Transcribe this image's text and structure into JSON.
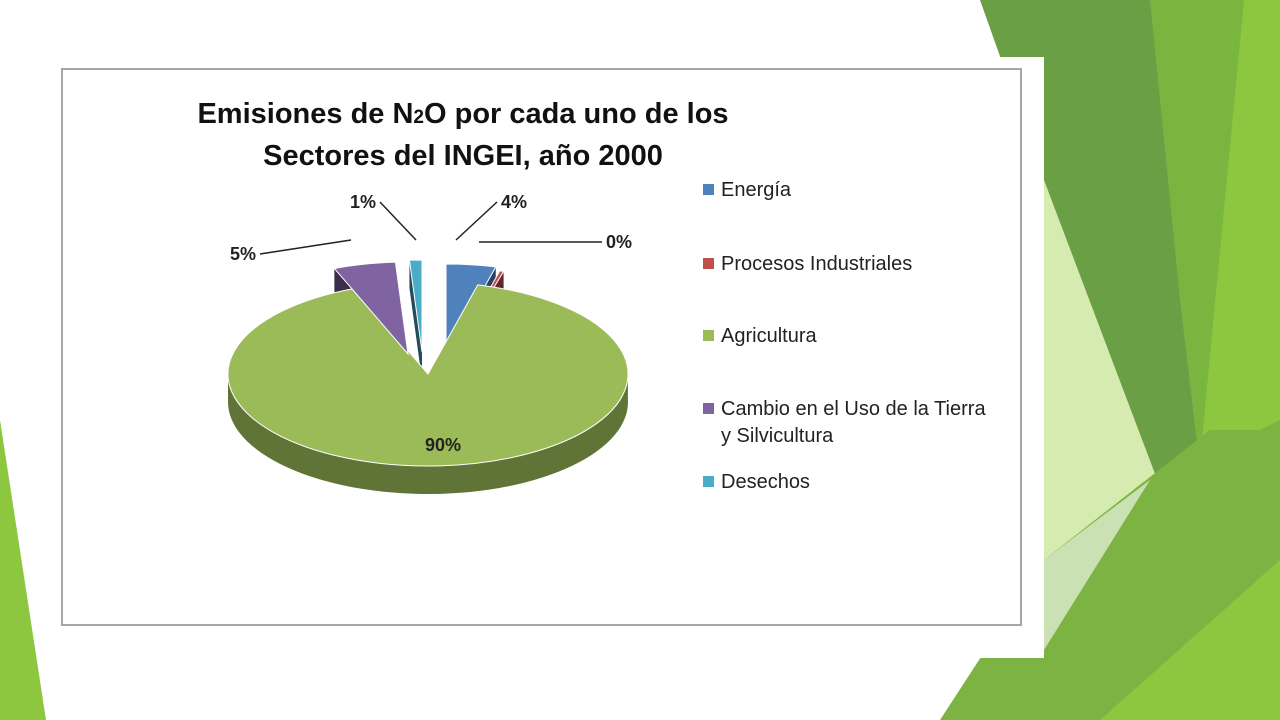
{
  "colors": {
    "green_dark": "#5f9b37",
    "green_mid": "#79b53f",
    "green_light": "#8dc63f",
    "green_pale": "#d6ebb0"
  },
  "chart_data": {
    "type": "pie",
    "style": "3d-exploded",
    "title_line1": "Emisiones de N",
    "title_sub": "2",
    "title_line1_rest": "O por cada uno de los",
    "title_line2": "Sectores del INGEI, año 2000",
    "categories": [
      "Energía",
      "Procesos Industriales",
      "Agricultura",
      "Cambio en el Uso de la Tierra y Silvicultura",
      "Desechos"
    ],
    "values": [
      4,
      0,
      90,
      5,
      1
    ],
    "data_labels": [
      "4%",
      "0%",
      "90%",
      "5%",
      "1%"
    ],
    "colors": [
      "#4f81bd",
      "#c0504d",
      "#9bbb59",
      "#8064a2",
      "#4bacc6"
    ],
    "legend": {
      "position": "right",
      "entries": [
        {
          "label_lines": [
            "Energía"
          ],
          "color": "#4f81bd"
        },
        {
          "label_lines": [
            "Procesos Industriales"
          ],
          "color": "#c0504d"
        },
        {
          "label_lines": [
            "Agricultura"
          ],
          "color": "#9bbb59"
        },
        {
          "label_lines": [
            "Cambio en el Uso de la Tierra",
            "y Silvicultura"
          ],
          "color": "#8064a2"
        },
        {
          "label_lines": [
            "Desechos"
          ],
          "color": "#4bacc6"
        }
      ]
    }
  }
}
